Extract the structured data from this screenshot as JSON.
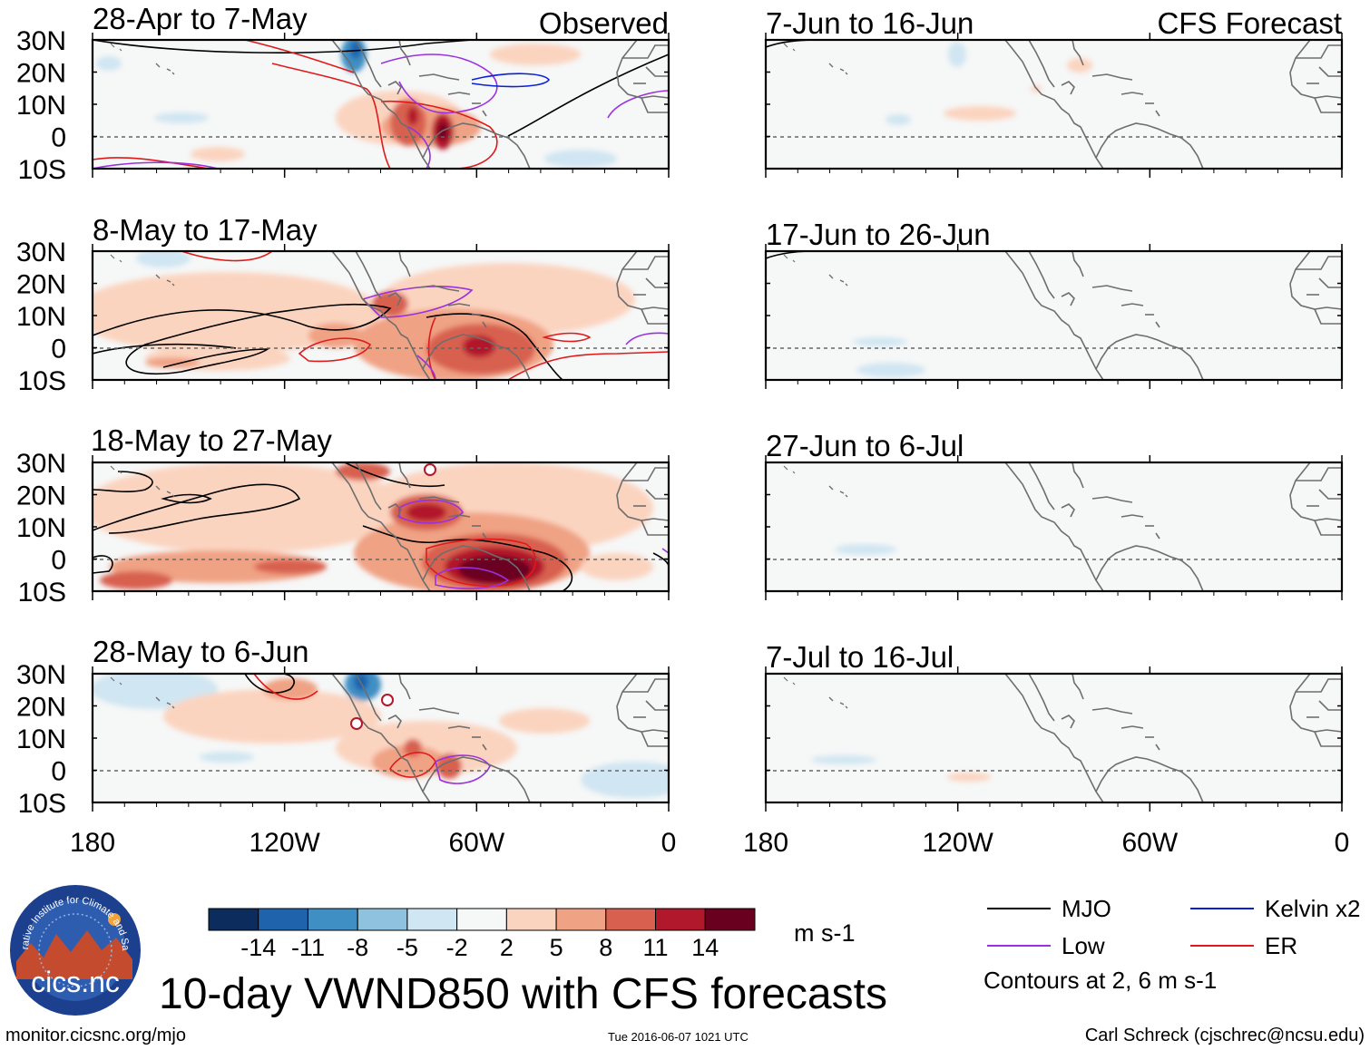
{
  "figure": {
    "title": "10-day VWND850 with CFS forecasts",
    "variable": "VWND850",
    "url": "monitor.cicsnc.org/mjo",
    "timestamp": "Tue 2016-06-07 1021 UTC",
    "author": "Carl Schreck (cjschrec@ncsu.edu)",
    "logo_text": "cics.nc",
    "logo_ring_text": "Cooperative Institute for Climate and Satellites"
  },
  "columns": {
    "observed_label": "Observed",
    "forecast_label": "CFS Forecast"
  },
  "panels": {
    "observed": [
      {
        "period": "28-Apr to 7-May"
      },
      {
        "period": "8-May to 17-May"
      },
      {
        "period": "18-May to 27-May"
      },
      {
        "period": "28-May to 6-Jun"
      }
    ],
    "forecast": [
      {
        "period": "7-Jun to 16-Jun"
      },
      {
        "period": "17-Jun to 26-Jun"
      },
      {
        "period": "27-Jun to 6-Jul"
      },
      {
        "period": "7-Jul to 16-Jul"
      }
    ]
  },
  "axes": {
    "lat_labels": [
      "30N",
      "20N",
      "10N",
      "0",
      "10S"
    ],
    "lon_labels": [
      "180",
      "120W",
      "60W",
      "0"
    ],
    "lat_range": [
      -10,
      30
    ],
    "lon_range": [
      -180,
      0
    ]
  },
  "colorbar": {
    "unit": "m s-1",
    "ticks": [
      "-14",
      "-11",
      "-8",
      "-5",
      "-2",
      "2",
      "5",
      "8",
      "11",
      "14"
    ],
    "colors": [
      "#0b2c5c",
      "#1f63ad",
      "#3f8fc4",
      "#8ec2df",
      "#d0e6f2",
      "#f6f7f7",
      "#fbd4c0",
      "#f0a284",
      "#d8604f",
      "#b2182b",
      "#6a0020"
    ]
  },
  "legend": {
    "items": [
      {
        "label": "MJO",
        "color": "#000000"
      },
      {
        "label": "Kelvin x2",
        "color": "#0b1fd8"
      },
      {
        "label": "Low",
        "color": "#9b30e0"
      },
      {
        "label": "ER",
        "color": "#e01a1a"
      }
    ],
    "contours_note": "Contours at 2, 6 m s-1"
  }
}
